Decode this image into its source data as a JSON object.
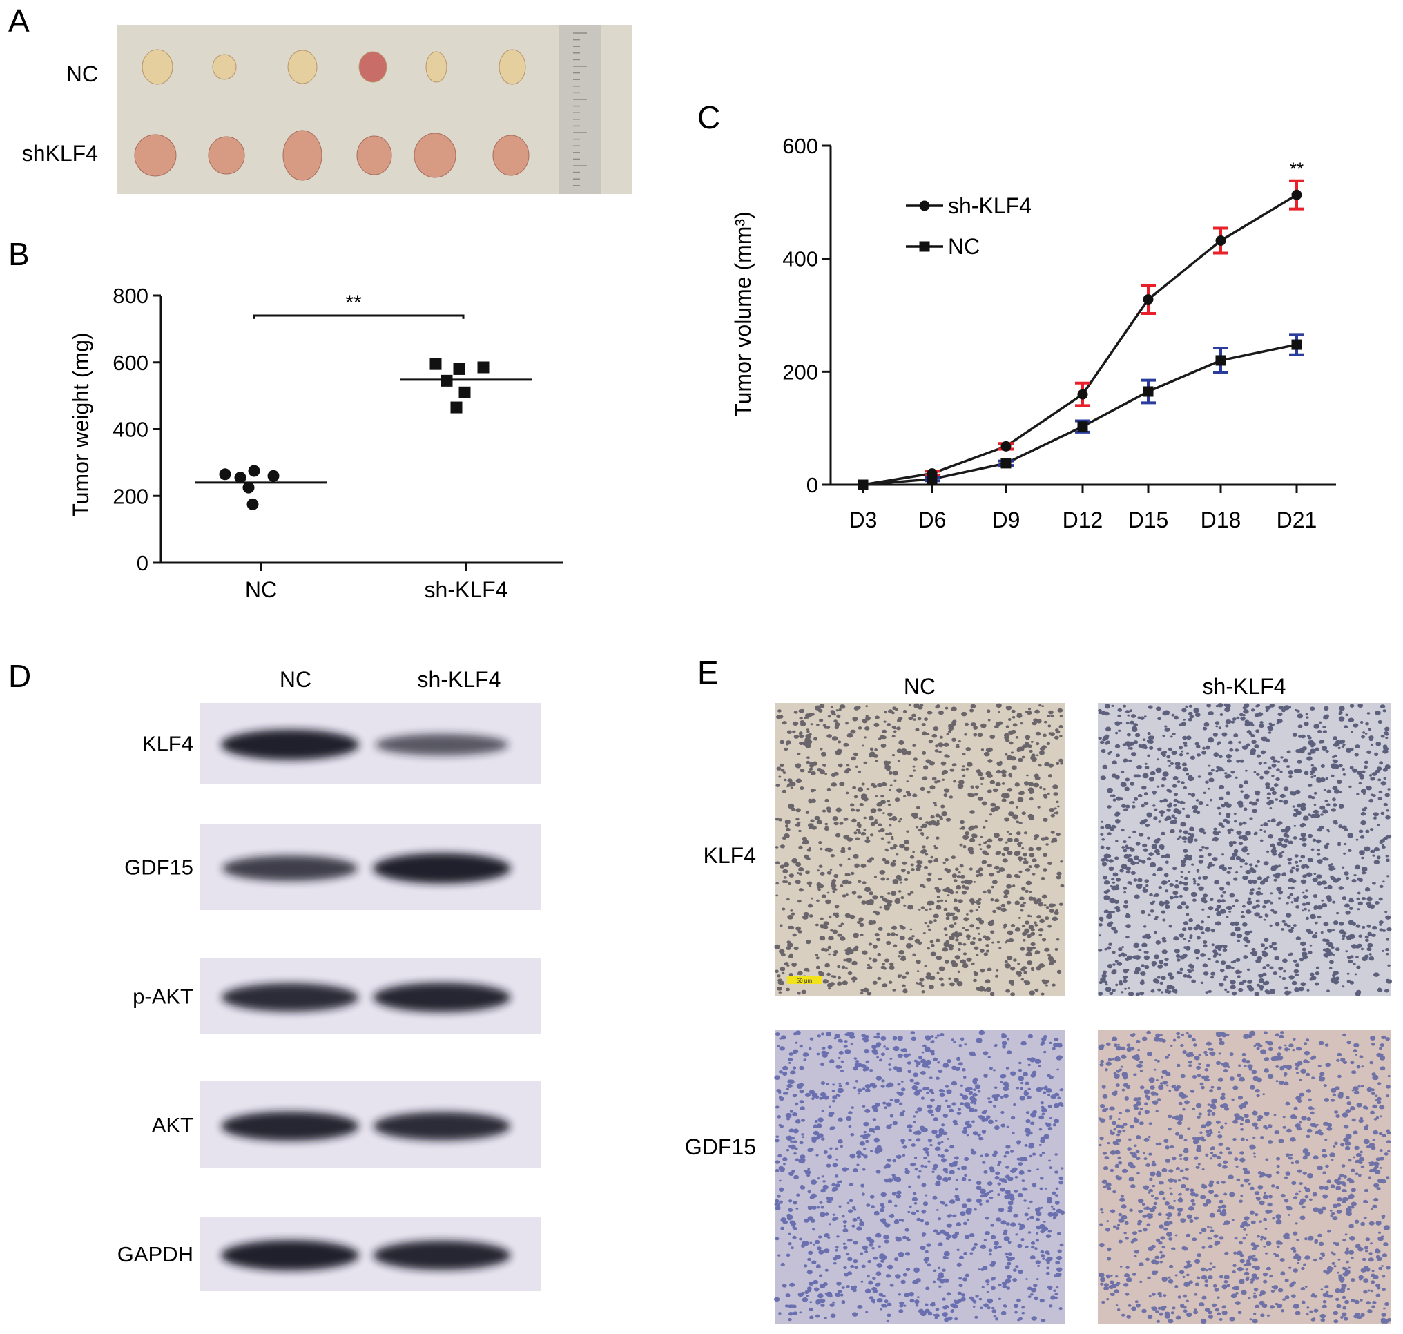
{
  "panels": {
    "A": {
      "letter": "A",
      "row_labels": [
        "NC",
        "shKLF4"
      ],
      "colors": {
        "background": "#dcd8cc",
        "nc_tumor": "#e6cf9f",
        "sh_tumor": "#d79b84",
        "ruler": "#c8c6be"
      }
    },
    "B": {
      "letter": "B",
      "significance": "**"
    },
    "C": {
      "letter": "C",
      "significance": "**",
      "colors": {
        "sh_error": "#e8202a",
        "nc_error": "#2a3c9c",
        "line": "#1a1a1a"
      }
    },
    "D": {
      "letter": "D",
      "column_labels": [
        "NC",
        "sh-KLF4"
      ],
      "bands": [
        "KLF4",
        "GDF15",
        "p-AKT",
        "AKT",
        "GAPDH"
      ],
      "band_strength": [
        [
          1.0,
          0.55
        ],
        [
          0.75,
          1.0
        ],
        [
          0.9,
          0.95
        ],
        [
          0.95,
          0.9
        ],
        [
          1.0,
          0.95
        ]
      ],
      "colors": {
        "membrane": "#e6e3ef",
        "band": "#141220"
      }
    },
    "E": {
      "letter": "E",
      "column_labels": [
        "NC",
        "sh-KLF4"
      ],
      "row_labels": [
        "KLF4",
        "GDF15"
      ],
      "scale_bar": "50 μm",
      "colors": {
        "stroma": "#d9cfc0",
        "nuclei_dark": "#3e3b4a",
        "gdf15_bg": "#c4c1d6",
        "gdf15_nuclei": "#4650a0"
      }
    }
  },
  "chart_data": [
    {
      "type": "scatter",
      "panel": "B",
      "categories": [
        "NC",
        "sh-KLF4"
      ],
      "ylabel": "Tumor weight (mg)",
      "ylim": [
        0,
        800
      ],
      "yticks": [
        0,
        200,
        400,
        600,
        800
      ],
      "series": [
        {
          "marker": "circle",
          "values": [
            265,
            255,
            275,
            260,
            225,
            175
          ],
          "mean": 240
        },
        {
          "marker": "square",
          "values": [
            595,
            580,
            585,
            545,
            510,
            465
          ],
          "mean": 548
        }
      ]
    },
    {
      "type": "line",
      "panel": "C",
      "categories": [
        "D3",
        "D6",
        "D9",
        "D12",
        "D15",
        "D18",
        "D21"
      ],
      "ylabel": "Tumor volume (mm³)",
      "ylim": [
        0,
        600
      ],
      "yticks": [
        0,
        200,
        400,
        600
      ],
      "legend": "top-left",
      "grid": false,
      "series": [
        {
          "name": "sh-KLF4",
          "marker": "circle",
          "values": [
            0,
            20,
            68,
            160,
            328,
            432,
            513
          ],
          "err": [
            0,
            4,
            5,
            20,
            25,
            22,
            25
          ]
        },
        {
          "name": "NC",
          "marker": "square",
          "values": [
            0,
            10,
            38,
            103,
            165,
            220,
            248
          ],
          "err": [
            0,
            3,
            4,
            10,
            20,
            22,
            18
          ]
        }
      ]
    }
  ]
}
